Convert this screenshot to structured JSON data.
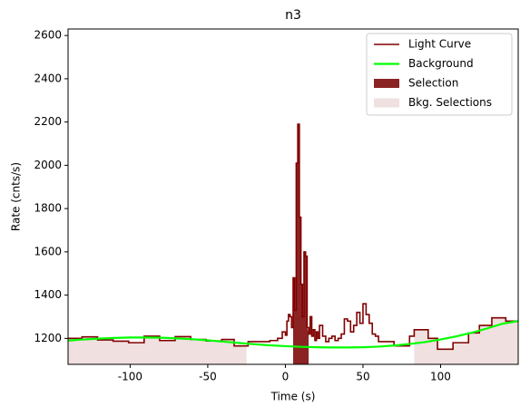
{
  "chart_data": {
    "type": "step",
    "title": "n3",
    "xlabel": "Time (s)",
    "ylabel": "Rate (cnts/s)",
    "xlim": [
      -140,
      150
    ],
    "ylim": [
      1080,
      2630
    ],
    "xticks": [
      -100,
      -50,
      0,
      50,
      100
    ],
    "yticks": [
      1200,
      1400,
      1600,
      1800,
      2000,
      2200,
      2400,
      2600
    ],
    "legend": "upper right",
    "series": [
      {
        "name": "Light Curve",
        "color": "#800000",
        "x": [
          -140,
          -131,
          -121,
          -111,
          -101,
          -91,
          -81,
          -71,
          -61,
          -51,
          -41,
          -33,
          -24,
          -10,
          -5,
          -2,
          0,
          1,
          2,
          3,
          4,
          5,
          6,
          7,
          8,
          9,
          10,
          11,
          12,
          13,
          14,
          15,
          16,
          17,
          18,
          19,
          20,
          21,
          22,
          24,
          26,
          28,
          30,
          32,
          34,
          36,
          38,
          40,
          42,
          44,
          46,
          48,
          50,
          52,
          54,
          56,
          58,
          60,
          70,
          80,
          83,
          92,
          98,
          108,
          118,
          125,
          133,
          142,
          150
        ],
        "values": [
          1200,
          1207,
          1193,
          1187,
          1180,
          1210,
          1190,
          1208,
          1195,
          1188,
          1195,
          1165,
          1185,
          1190,
          1200,
          1230,
          1215,
          1280,
          1310,
          1300,
          1250,
          1480,
          1330,
          2010,
          2190,
          1760,
          1450,
          1300,
          1600,
          1580,
          1250,
          1220,
          1300,
          1210,
          1240,
          1190,
          1230,
          1200,
          1260,
          1210,
          1185,
          1200,
          1210,
          1190,
          1200,
          1220,
          1290,
          1280,
          1230,
          1260,
          1320,
          1270,
          1360,
          1310,
          1270,
          1220,
          1210,
          1185,
          1165,
          1210,
          1240,
          1200,
          1150,
          1180,
          1225,
          1260,
          1295,
          1280,
          1280
        ]
      },
      {
        "name": "Background",
        "color": "#00ff00",
        "x": [
          -140,
          -130,
          -120,
          -110,
          -100,
          -90,
          -80,
          -70,
          -60,
          -50,
          -40,
          -30,
          -20,
          -10,
          0,
          10,
          20,
          30,
          40,
          50,
          60,
          70,
          80,
          90,
          100,
          110,
          120,
          130,
          140,
          150
        ],
        "values": [
          1190,
          1195,
          1199,
          1202,
          1204,
          1204,
          1203,
          1200,
          1196,
          1191,
          1185,
          1179,
          1173,
          1168,
          1164,
          1161,
          1159,
          1158,
          1158,
          1159,
          1162,
          1167,
          1174,
          1183,
          1195,
          1209,
          1226,
          1246,
          1268,
          1280
        ]
      }
    ],
    "selection": {
      "name": "Selection",
      "color": "#8b2323",
      "intervals": [
        [
          5,
          15
        ]
      ]
    },
    "bkg_selections": {
      "name": "Bkg. Selections",
      "color": "#f0e0e0",
      "intervals": [
        [
          -140,
          -25
        ],
        [
          83,
          150
        ]
      ]
    }
  }
}
